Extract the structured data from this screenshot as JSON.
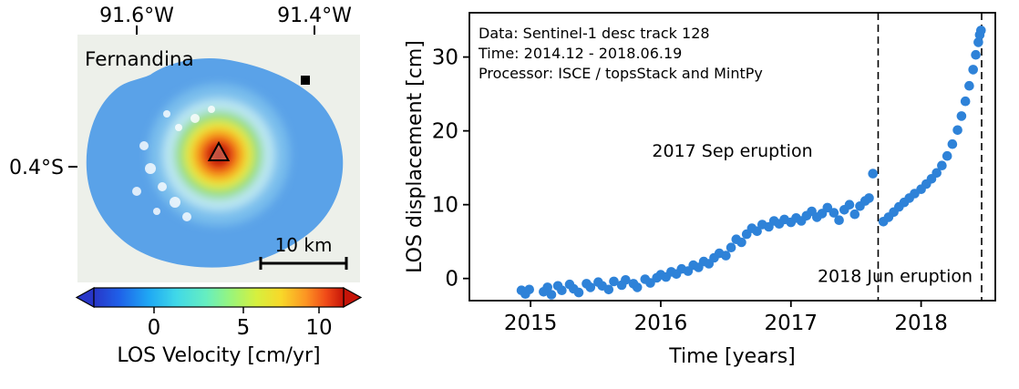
{
  "figure": {
    "background": "#ffffff"
  },
  "map_panel": {
    "title": "Fernandina",
    "lon_ticks": [
      "91.6°W",
      "91.4°W"
    ],
    "lat_tick": "0.4°S",
    "scalebar_label": "10 km",
    "markers": {
      "summit": "triangle-marker",
      "reference": "square-marker"
    },
    "colorbar": {
      "ticks": [
        "0",
        "5",
        "10"
      ],
      "label": "LOS Velocity [cm/yr]"
    },
    "colors": {
      "island_blue": "#5aa2e8",
      "caldera_red": "#ea3c14",
      "basemap_gray": "#edf0ea"
    }
  },
  "chart_data": {
    "type": "scatter",
    "title": "",
    "xlabel": "Time [years]",
    "ylabel": "LOS displacement [cm]",
    "xlim": [
      2014.53,
      2018.57
    ],
    "ylim": [
      -3.0,
      36.0
    ],
    "x_ticks": [
      2015,
      2016,
      2017,
      2018
    ],
    "y_ticks": [
      0,
      10,
      20,
      30
    ],
    "grid": false,
    "point_color": "#2e82d8",
    "info_lines": [
      "Data: Sentinel-1 desc track 128",
      "Time: 2014.12 - 2018.06.19",
      "Processor: ISCE / topsStack and MintPy"
    ],
    "event_annotations": [
      {
        "text": "2017 Sep eruption",
        "x": 2016.55,
        "y": 16.5,
        "line_x": 2017.67
      },
      {
        "text": "2018 Jun eruption",
        "x": 2017.8,
        "y": -0.5,
        "line_x": 2018.465
      }
    ],
    "series": [
      {
        "name": "LOS displacement",
        "points": [
          [
            2014.93,
            -1.6
          ],
          [
            2014.96,
            -2.1
          ],
          [
            2014.99,
            -1.5
          ],
          [
            2015.1,
            -1.8
          ],
          [
            2015.13,
            -1.2
          ],
          [
            2015.16,
            -2.2
          ],
          [
            2015.21,
            -1.0
          ],
          [
            2015.24,
            -1.6
          ],
          [
            2015.3,
            -0.8
          ],
          [
            2015.33,
            -1.4
          ],
          [
            2015.37,
            -1.9
          ],
          [
            2015.43,
            -0.7
          ],
          [
            2015.46,
            -1.2
          ],
          [
            2015.52,
            -0.5
          ],
          [
            2015.55,
            -1.0
          ],
          [
            2015.6,
            -1.5
          ],
          [
            2015.64,
            -0.4
          ],
          [
            2015.7,
            -0.9
          ],
          [
            2015.73,
            -0.2
          ],
          [
            2015.79,
            -0.7
          ],
          [
            2015.82,
            -1.2
          ],
          [
            2015.88,
            -0.1
          ],
          [
            2015.92,
            -0.6
          ],
          [
            2015.97,
            0.1
          ],
          [
            2016.0,
            0.5
          ],
          [
            2016.04,
            0.2
          ],
          [
            2016.08,
            0.9
          ],
          [
            2016.12,
            0.6
          ],
          [
            2016.16,
            1.3
          ],
          [
            2016.21,
            1.0
          ],
          [
            2016.25,
            1.8
          ],
          [
            2016.29,
            1.5
          ],
          [
            2016.33,
            2.3
          ],
          [
            2016.37,
            2.0
          ],
          [
            2016.41,
            2.8
          ],
          [
            2016.45,
            3.4
          ],
          [
            2016.5,
            3.1
          ],
          [
            2016.54,
            4.2
          ],
          [
            2016.58,
            5.3
          ],
          [
            2016.62,
            4.9
          ],
          [
            2016.66,
            6.0
          ],
          [
            2016.7,
            6.8
          ],
          [
            2016.74,
            6.4
          ],
          [
            2016.78,
            7.3
          ],
          [
            2016.83,
            7.0
          ],
          [
            2016.87,
            7.8
          ],
          [
            2016.91,
            7.4
          ],
          [
            2016.95,
            8.0
          ],
          [
            2017.0,
            7.6
          ],
          [
            2017.04,
            8.2
          ],
          [
            2017.08,
            7.8
          ],
          [
            2017.12,
            8.5
          ],
          [
            2017.16,
            9.1
          ],
          [
            2017.2,
            8.3
          ],
          [
            2017.24,
            8.8
          ],
          [
            2017.28,
            9.6
          ],
          [
            2017.33,
            8.9
          ],
          [
            2017.37,
            7.9
          ],
          [
            2017.41,
            9.3
          ],
          [
            2017.45,
            10.0
          ],
          [
            2017.49,
            8.7
          ],
          [
            2017.53,
            9.8
          ],
          [
            2017.57,
            10.5
          ],
          [
            2017.6,
            10.9
          ],
          [
            2017.63,
            14.2
          ],
          [
            2017.71,
            7.7
          ],
          [
            2017.75,
            8.3
          ],
          [
            2017.79,
            9.0
          ],
          [
            2017.83,
            9.7
          ],
          [
            2017.87,
            10.3
          ],
          [
            2017.91,
            10.9
          ],
          [
            2017.95,
            11.5
          ],
          [
            2018.0,
            12.1
          ],
          [
            2018.04,
            12.8
          ],
          [
            2018.08,
            13.5
          ],
          [
            2018.12,
            14.3
          ],
          [
            2018.16,
            15.3
          ],
          [
            2018.2,
            16.6
          ],
          [
            2018.24,
            18.2
          ],
          [
            2018.28,
            20.1
          ],
          [
            2018.31,
            22.0
          ],
          [
            2018.34,
            24.0
          ],
          [
            2018.37,
            26.1
          ],
          [
            2018.4,
            28.3
          ],
          [
            2018.42,
            30.3
          ],
          [
            2018.44,
            32.0
          ],
          [
            2018.45,
            33.0
          ],
          [
            2018.46,
            33.6
          ]
        ]
      }
    ]
  }
}
